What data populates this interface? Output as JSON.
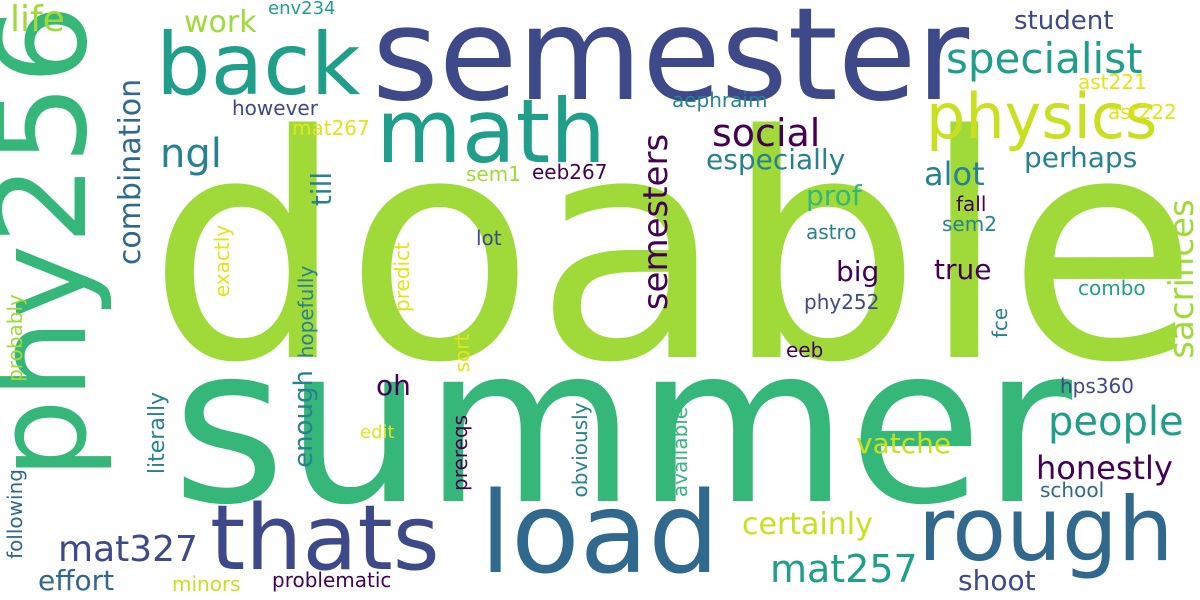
{
  "palette": {
    "dark_purple": "#440154",
    "indigo": "#3e4989",
    "slate_blue": "#31688e",
    "teal_blue": "#26828e",
    "teal": "#1f9e89",
    "green": "#35b779",
    "lime": "#a0da39",
    "yellow_green": "#c8e020",
    "yellow": "#e3e418"
  },
  "words": {
    "doable": "doable",
    "summer": "summer",
    "semester": "semester",
    "phy256": "phy256",
    "load": "load",
    "thats": "thats",
    "rough": "rough",
    "math": "math",
    "back": "back",
    "physics": "physics",
    "specialist": "specialist",
    "combination": "combination",
    "semesters": "semesters",
    "sacrifices": "sacrifices",
    "social": "social",
    "especially": "especially",
    "ngl": "ngl",
    "people": "people",
    "mat257": "mat257",
    "mat327": "mat327",
    "honestly": "honestly",
    "certainly": "certainly",
    "effort": "effort",
    "shoot": "shoot",
    "vatche": "vatche",
    "alot": "alot",
    "big": "big",
    "true": "true",
    "perhaps": "perhaps",
    "prof": "prof",
    "oh": "oh",
    "enough": "enough",
    "literally": "literally",
    "till": "till",
    "life": "life",
    "work": "work",
    "student": "student",
    "env234": "env234",
    "however": "however",
    "aephraim": "aephraim",
    "ast221": "ast221",
    "ast222": "ast222",
    "mat267": "mat267",
    "sem1": "sem1",
    "eeb267": "eeb267",
    "fall": "fall",
    "sem2": "sem2",
    "astro": "astro",
    "lot": "lot",
    "combo": "combo",
    "phy252": "phy252",
    "eeb": "eeb",
    "hps360": "hps360",
    "school": "school",
    "problematic": "problematic",
    "minors": "minors",
    "following": "following",
    "probably": "probably",
    "exactly": "exactly",
    "hopefully": "hopefully",
    "predict": "predict",
    "sort": "sort",
    "edit": "edit",
    "prereqs": "prereqs",
    "obviously": "obviously",
    "available": "available",
    "fce": "fce"
  }
}
